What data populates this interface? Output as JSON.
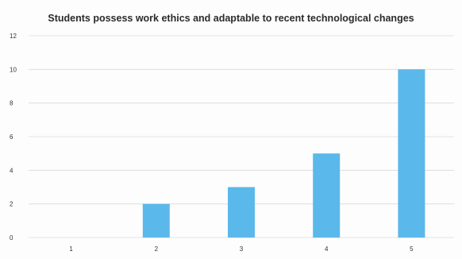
{
  "chart_data": {
    "type": "bar",
    "title": "Students possess work ethics and adaptable to recent technological changes",
    "xlabel": "",
    "ylabel": "",
    "categories": [
      "1",
      "2",
      "3",
      "4",
      "5"
    ],
    "values": [
      0,
      2,
      3,
      5,
      10
    ],
    "ylim": [
      0,
      12
    ],
    "yticks": [
      0,
      2,
      4,
      6,
      8,
      10,
      12
    ],
    "grid": true,
    "legend": "none",
    "bar_color": "#5bb8ea"
  }
}
